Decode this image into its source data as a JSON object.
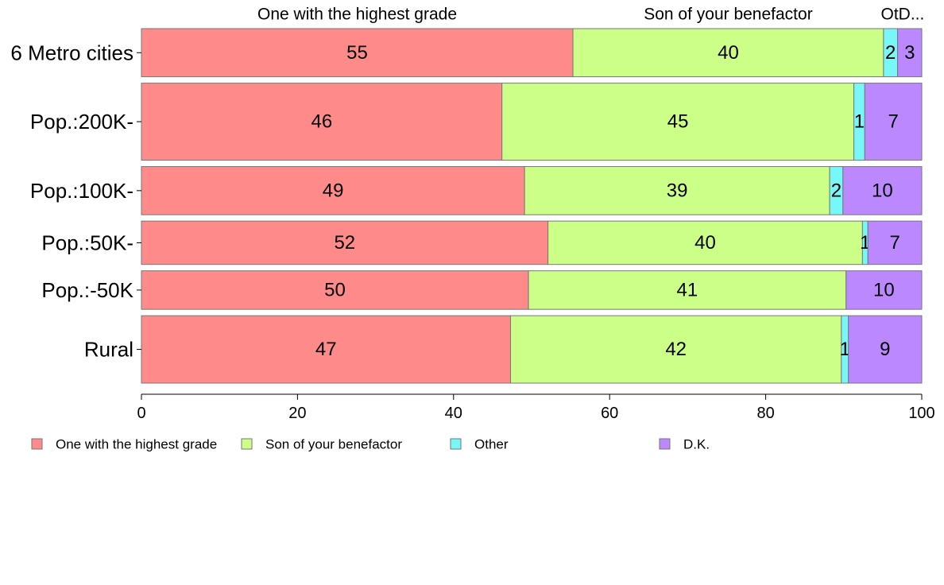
{
  "chart_data": {
    "type": "bar",
    "orientation": "horizontal",
    "stacked": true,
    "title": "",
    "xlabel": "",
    "ylabel": "",
    "xlim": [
      0,
      100
    ],
    "x_ticks": [
      "0",
      "20",
      "40",
      "60",
      "80",
      "100"
    ],
    "top_labels": [
      "One with the highest grade",
      "Son of your benefactor",
      "OtD..."
    ],
    "categories": [
      "6 Metro cities",
      "Pop.:200K-",
      "Pop.:100K-",
      "Pop.:50K-",
      "Pop.:-50K",
      "Rural"
    ],
    "relative_bar_heights": [
      1.0,
      1.6,
      1.0,
      0.9,
      0.8,
      1.4
    ],
    "legend_position": "bottom",
    "grid": false,
    "series": [
      {
        "name": "One with the highest grade",
        "color": "#ff8a8a",
        "values": [
          55.3,
          46.2,
          49.1,
          52.1,
          49.6,
          47.3
        ],
        "labels": [
          "55",
          "46",
          "49",
          "52",
          "50",
          "47"
        ]
      },
      {
        "name": "Son of your benefactor",
        "color": "#ccff88",
        "values": [
          39.8,
          45.1,
          39.1,
          40.3,
          40.7,
          42.4
        ],
        "labels": [
          "40",
          "45",
          "39",
          "40",
          "41",
          "42"
        ]
      },
      {
        "name": "Other",
        "color": "#77f7f7",
        "values": [
          1.8,
          1.4,
          1.7,
          0.7,
          0.0,
          0.9
        ],
        "labels": [
          "2",
          "1",
          "2",
          "1",
          "",
          "1"
        ]
      },
      {
        "name": "D.K.",
        "color": "#bb88ff",
        "values": [
          3.1,
          7.3,
          10.1,
          6.9,
          9.7,
          9.4
        ],
        "labels": [
          "3",
          "7",
          "10",
          "7",
          "10",
          "9"
        ]
      }
    ]
  }
}
